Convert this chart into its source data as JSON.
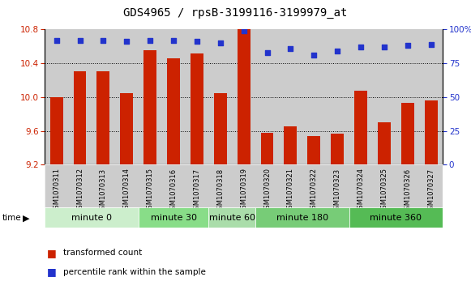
{
  "title": "GDS4965 / rpsB-3199116-3199979_at",
  "samples": [
    "GSM1070311",
    "GSM1070312",
    "GSM1070313",
    "GSM1070314",
    "GSM1070315",
    "GSM1070316",
    "GSM1070317",
    "GSM1070318",
    "GSM1070319",
    "GSM1070320",
    "GSM1070321",
    "GSM1070322",
    "GSM1070323",
    "GSM1070324",
    "GSM1070325",
    "GSM1070326",
    "GSM1070327"
  ],
  "bar_values": [
    10.0,
    10.3,
    10.3,
    10.05,
    10.55,
    10.46,
    10.52,
    10.05,
    10.8,
    9.58,
    9.65,
    9.54,
    9.57,
    10.07,
    9.7,
    9.93,
    9.96
  ],
  "percentile_values": [
    92,
    92,
    92,
    91,
    92,
    92,
    91,
    90,
    99,
    83,
    86,
    81,
    84,
    87,
    87,
    88,
    89
  ],
  "bar_color": "#cc2200",
  "dot_color": "#2233cc",
  "ylim_left": [
    9.2,
    10.8
  ],
  "ylim_right": [
    0,
    100
  ],
  "yticks_left": [
    9.2,
    9.6,
    10.0,
    10.4,
    10.8
  ],
  "yticks_right": [
    0,
    25,
    50,
    75,
    100
  ],
  "ytick_labels_right": [
    "0",
    "25",
    "50",
    "75",
    "100%"
  ],
  "gridline_y": [
    9.6,
    10.0,
    10.4
  ],
  "groups": [
    {
      "label": "minute 0",
      "start": 0,
      "end": 4,
      "color": "#cceecc"
    },
    {
      "label": "minute 30",
      "start": 4,
      "end": 7,
      "color": "#88dd88"
    },
    {
      "label": "minute 60",
      "start": 7,
      "end": 9,
      "color": "#aaddaa"
    },
    {
      "label": "minute 180",
      "start": 9,
      "end": 13,
      "color": "#77cc77"
    },
    {
      "label": "minute 360",
      "start": 13,
      "end": 17,
      "color": "#55bb55"
    }
  ],
  "legend_bar_label": "transformed count",
  "legend_dot_label": "percentile rank within the sample",
  "bg_color": "#cccccc",
  "title_fontsize": 10,
  "tick_fontsize": 7.5,
  "sample_fontsize": 6.0,
  "group_fontsize": 8.0
}
